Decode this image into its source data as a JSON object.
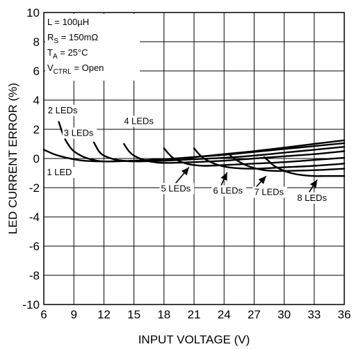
{
  "chart_data": {
    "type": "line",
    "title": "",
    "xlabel": "INPUT VOLTAGE (V)",
    "ylabel": "LED CURRENT ERROR (%)",
    "xlim": [
      6,
      36
    ],
    "ylim": [
      -10,
      10
    ],
    "xticks": [
      "6",
      "9",
      "12",
      "15",
      "18",
      "21",
      "24",
      "27",
      "30",
      "33",
      "36"
    ],
    "yticks": [
      "10",
      "8",
      "6",
      "4",
      "2",
      "0",
      "-2",
      "-4",
      "-6",
      "-8",
      "-10"
    ],
    "grid": true,
    "conditions": [
      {
        "label": "L = 100µH"
      },
      {
        "label": "RS = 150mΩ",
        "main": "R",
        "sub": "S",
        "rest": " = 150mΩ"
      },
      {
        "label": "TA = 25°C",
        "main": "T",
        "sub": "A",
        "rest": " = 25°C"
      },
      {
        "label": "VCTRL = Open",
        "main": "V",
        "sub": "CTRL",
        "rest": " = Open"
      }
    ],
    "series": [
      {
        "name": "1 LED",
        "label_x": 6.3,
        "label_y": -1.15,
        "x": [
          6,
          7,
          8,
          9,
          10,
          12,
          15,
          18,
          21,
          24,
          27,
          30,
          33,
          36
        ],
        "y": [
          0.6,
          0.3,
          0.1,
          -0.05,
          -0.15,
          -0.2,
          -0.15,
          -0.05,
          0.1,
          0.3,
          0.5,
          0.75,
          1.0,
          1.25
        ]
      },
      {
        "name": "2 LEDs",
        "label_x": 6.4,
        "label_y": 3.1,
        "x": [
          7.5,
          8,
          8.5,
          9,
          10,
          11,
          12,
          15,
          18,
          21,
          24,
          27,
          30,
          33,
          36
        ],
        "y": [
          2.5,
          1.5,
          0.9,
          0.5,
          0.1,
          -0.1,
          -0.2,
          -0.15,
          -0.05,
          0.1,
          0.25,
          0.45,
          0.65,
          0.85,
          1.05
        ]
      },
      {
        "name": "3 LEDs",
        "label_x": 8.0,
        "label_y": 1.55,
        "x": [
          11,
          11.5,
          12,
          13,
          14,
          15,
          18,
          21,
          24,
          27,
          30,
          33,
          36
        ],
        "y": [
          1.1,
          0.5,
          0.2,
          -0.05,
          -0.15,
          -0.2,
          -0.15,
          -0.05,
          0.05,
          0.2,
          0.4,
          0.6,
          0.8
        ]
      },
      {
        "name": "4 LEDs",
        "label_x": 14.0,
        "label_y": 2.35,
        "x": [
          14,
          14.5,
          15,
          16,
          17,
          18,
          21,
          24,
          27,
          30,
          33,
          36
        ],
        "y": [
          1.0,
          0.5,
          0.2,
          -0.1,
          -0.25,
          -0.3,
          -0.25,
          -0.15,
          0.0,
          0.15,
          0.3,
          0.5
        ]
      },
      {
        "name": "5 LEDs",
        "label_x": 17.7,
        "label_y": -2.25,
        "arrow_from": [
          19.1,
          -1.75
        ],
        "arrow_to": [
          20.5,
          -0.6
        ],
        "x": [
          18,
          18.5,
          19,
          20,
          21,
          22,
          24,
          27,
          30,
          33,
          36
        ],
        "y": [
          0.7,
          0.3,
          0.0,
          -0.3,
          -0.45,
          -0.5,
          -0.45,
          -0.35,
          -0.25,
          -0.1,
          0.05
        ]
      },
      {
        "name": "6 LEDs",
        "label_x": 22.9,
        "label_y": -2.4,
        "arrow_from": [
          23.7,
          -1.85
        ],
        "arrow_to": [
          24.3,
          -0.95
        ],
        "x": [
          21,
          21.5,
          22,
          23,
          24,
          25,
          27,
          30,
          33,
          36
        ],
        "y": [
          0.7,
          0.3,
          0.0,
          -0.35,
          -0.55,
          -0.65,
          -0.7,
          -0.6,
          -0.5,
          -0.35
        ]
      },
      {
        "name": "7 LEDs",
        "label_x": 27.0,
        "label_y": -2.5,
        "arrow_from": [
          27.2,
          -1.95
        ],
        "arrow_to": [
          28.2,
          -1.2
        ],
        "x": [
          24.5,
          25,
          26,
          27,
          28,
          29,
          30,
          33,
          36
        ],
        "y": [
          0.3,
          0.0,
          -0.4,
          -0.65,
          -0.8,
          -0.85,
          -0.85,
          -0.8,
          -0.7
        ]
      },
      {
        "name": "8 LEDs",
        "label_x": 31.3,
        "label_y": -2.9,
        "arrow_from": [
          32.5,
          -2.3
        ],
        "arrow_to": [
          33.3,
          -1.45
        ],
        "x": [
          28,
          28.5,
          29,
          30,
          31,
          32,
          33,
          34,
          36
        ],
        "y": [
          0.1,
          -0.2,
          -0.5,
          -0.85,
          -1.05,
          -1.15,
          -1.2,
          -1.2,
          -1.2
        ]
      }
    ]
  }
}
